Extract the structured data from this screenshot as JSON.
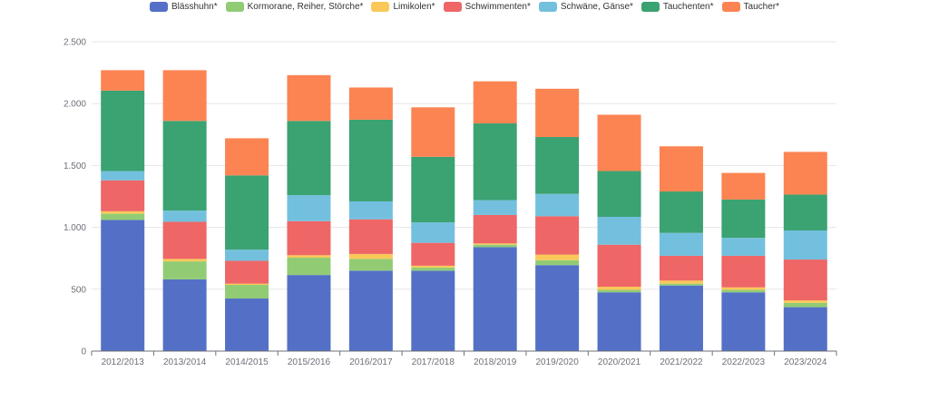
{
  "chart_data": {
    "type": "bar",
    "stacked": true,
    "categories": [
      "2012/2013",
      "2013/2014",
      "2014/2015",
      "2015/2016",
      "2016/2017",
      "2017/2018",
      "2018/2019",
      "2019/2020",
      "2020/2021",
      "2021/2022",
      "2022/2023",
      "2023/2024"
    ],
    "ylim": [
      0,
      2500
    ],
    "yticks": [
      0,
      500,
      1000,
      1500,
      2000,
      2500
    ],
    "ytick_labels": [
      "0",
      "500",
      "1.000",
      "1.500",
      "2.000",
      "2.500"
    ],
    "grid": true,
    "legend_position": "top-center",
    "series": [
      {
        "name": "Blässhuhn*",
        "color": "#5470c6",
        "values": [
          1060,
          580,
          425,
          615,
          650,
          650,
          840,
          695,
          475,
          530,
          475,
          355
        ]
      },
      {
        "name": "Kormorane, Reiher, Störche*",
        "color": "#91cc75",
        "values": [
          50,
          145,
          110,
          140,
          95,
          25,
          20,
          40,
          20,
          15,
          20,
          35
        ]
      },
      {
        "name": "Limikolen*",
        "color": "#fac858",
        "values": [
          20,
          20,
          10,
          20,
          40,
          15,
          10,
          45,
          25,
          25,
          20,
          20
        ]
      },
      {
        "name": "Schwimmenten*",
        "color": "#ee6666",
        "values": [
          250,
          300,
          185,
          275,
          280,
          185,
          230,
          310,
          340,
          200,
          255,
          330
        ]
      },
      {
        "name": "Schwäne, Gänse*",
        "color": "#73c0de",
        "values": [
          75,
          90,
          90,
          210,
          145,
          165,
          120,
          180,
          225,
          185,
          145,
          235
        ]
      },
      {
        "name": "Tauchenten*",
        "color": "#3ba272",
        "values": [
          650,
          725,
          600,
          600,
          660,
          530,
          620,
          460,
          370,
          335,
          310,
          290
        ]
      },
      {
        "name": "Taucher*",
        "color": "#fc8452",
        "values": [
          165,
          410,
          300,
          370,
          260,
          400,
          340,
          390,
          455,
          365,
          215,
          345
        ]
      }
    ]
  }
}
